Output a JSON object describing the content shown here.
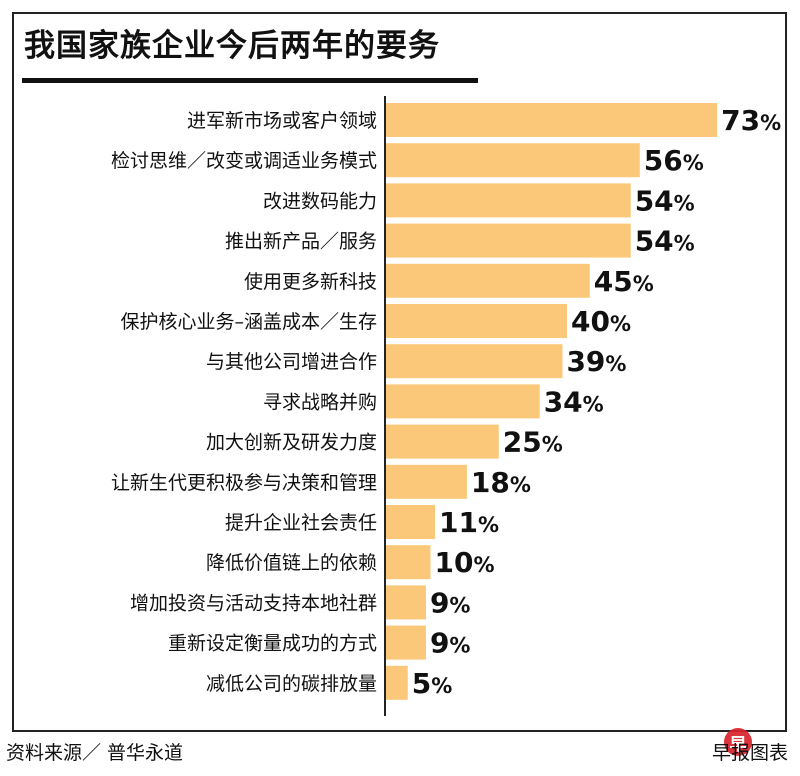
{
  "title": "我国家族企业今后两年的要务",
  "footer": {
    "source": "资料来源／ 普华永道",
    "credit": "早报图表"
  },
  "colors": {
    "bar": "#fac878",
    "text": "#111111",
    "axis": "#222222",
    "logo": "#d9232d"
  },
  "chart_data": {
    "type": "bar",
    "orientation": "horizontal",
    "title": "我国家族企业今后两年的要务",
    "categories": [
      "进军新市场或客户领域",
      "检讨思维／改变或调适业务模式",
      "改进数码能力",
      "推出新产品／服务",
      "使用更多新科技",
      "保护核心业务–涵盖成本／生存",
      "与其他公司增进合作",
      "寻求战略并购",
      "加大创新及研发力度",
      "让新生代更积极参与决策和管理",
      "提升企业社会责任",
      "降低价值链上的依赖",
      "增加投资与活动支持本地社群",
      "重新设定衡量成功的方式",
      "减低公司的碳排放量"
    ],
    "values": [
      73,
      56,
      54,
      54,
      45,
      40,
      39,
      34,
      25,
      18,
      11,
      10,
      9,
      9,
      5
    ],
    "value_labels": [
      "73",
      "56",
      "54",
      "54",
      "45",
      "40",
      "39",
      "34",
      "25",
      "18",
      "11",
      "10",
      "9",
      "9",
      "5"
    ],
    "unit": "%",
    "xlim": [
      0,
      100
    ],
    "grid": false,
    "legend": "none"
  }
}
